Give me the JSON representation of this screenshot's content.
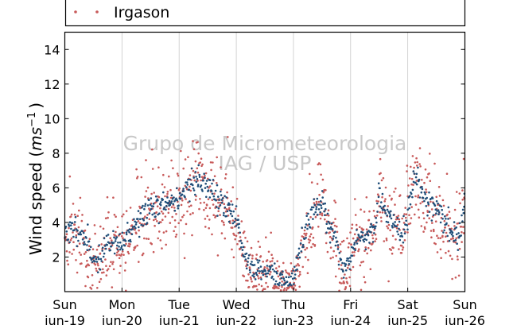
{
  "chart_data": {
    "type": "scatter",
    "title": "",
    "ylabel": "Wind speed (ms⁻¹)",
    "ylim": [
      0,
      15
    ],
    "yticks": [
      2,
      4,
      6,
      8,
      10,
      12,
      14
    ],
    "xlim": [
      "2016-06-19",
      "2016-06-26"
    ],
    "xticks": [
      {
        "day": "Sun",
        "date": "Jun-19"
      },
      {
        "day": "Mon",
        "date": "Jun-20"
      },
      {
        "day": "Tue",
        "date": "Jun-21"
      },
      {
        "day": "Wed",
        "date": "Jun-22"
      },
      {
        "day": "Thu",
        "date": "Jun-23"
      },
      {
        "day": "Fri",
        "date": "Jun-24"
      },
      {
        "day": "Sat",
        "date": "Jun-25"
      },
      {
        "day": "Sun",
        "date": "Jun-26"
      }
    ],
    "grid": "vertical",
    "legend_position": "above plot",
    "watermark": [
      "Grupo de Micrometeorologia",
      "IAG / USP"
    ],
    "series": [
      {
        "name": "",
        "color": "#1f4e79",
        "trend_x": [
          0,
          0.25,
          0.5,
          0.6,
          0.75,
          0.9,
          1.0,
          1.1,
          1.25,
          1.5,
          1.75,
          2.0,
          2.25,
          2.5,
          2.75,
          2.9,
          3.0,
          3.1,
          3.25,
          3.5,
          3.6,
          3.75,
          3.9,
          4.0,
          4.25,
          4.5,
          4.6,
          4.75,
          4.85,
          4.95,
          5.0,
          5.1,
          5.25,
          5.45,
          5.5,
          5.6,
          5.75,
          5.9,
          6.0,
          6.1,
          6.25,
          6.35,
          6.5,
          6.75,
          6.9,
          7.0
        ],
        "trend_y": [
          3.5,
          3.6,
          2.0,
          1.7,
          3.0,
          2.6,
          2.7,
          3.2,
          4.0,
          4.8,
          5.0,
          5.4,
          6.5,
          6.2,
          5.0,
          4.7,
          4.2,
          2.5,
          1.4,
          1.2,
          1.3,
          0.6,
          0.5,
          0.8,
          4.0,
          5.5,
          4.0,
          3.0,
          1.3,
          1.6,
          1.9,
          3.2,
          3.0,
          4.0,
          6.2,
          4.5,
          4.1,
          3.2,
          4.5,
          6.5,
          5.8,
          5.2,
          4.8,
          3.5,
          3.2,
          5.5
        ],
        "spread": 0.45,
        "n_points": 700,
        "seed": 11
      },
      {
        "name": "Irgason",
        "color": "#c85a5a",
        "trend_x": [
          0,
          0.25,
          0.5,
          0.6,
          0.75,
          0.9,
          1.0,
          1.1,
          1.25,
          1.5,
          1.75,
          2.0,
          2.25,
          2.5,
          2.75,
          2.9,
          3.0,
          3.1,
          3.25,
          3.5,
          3.6,
          3.75,
          3.9,
          4.0,
          4.25,
          4.5,
          4.6,
          4.75,
          4.85,
          4.95,
          5.0,
          5.1,
          5.25,
          5.45,
          5.5,
          5.6,
          5.75,
          5.9,
          6.0,
          6.1,
          6.25,
          6.35,
          6.5,
          6.75,
          6.9,
          7.0
        ],
        "trend_y": [
          3.3,
          3.2,
          1.8,
          1.5,
          2.8,
          2.5,
          2.6,
          3.0,
          3.9,
          4.6,
          4.8,
          5.2,
          6.2,
          5.9,
          4.8,
          4.5,
          4.0,
          2.3,
          1.3,
          1.0,
          1.1,
          0.5,
          0.5,
          0.7,
          3.8,
          5.8,
          4.2,
          3.0,
          1.2,
          1.5,
          1.8,
          3.1,
          2.9,
          3.9,
          6.5,
          4.6,
          4.0,
          3.0,
          4.3,
          6.8,
          5.9,
          5.1,
          4.6,
          3.3,
          3.0,
          5.3
        ],
        "spread": 1.4,
        "n_points": 1000,
        "seed": 29
      }
    ]
  }
}
